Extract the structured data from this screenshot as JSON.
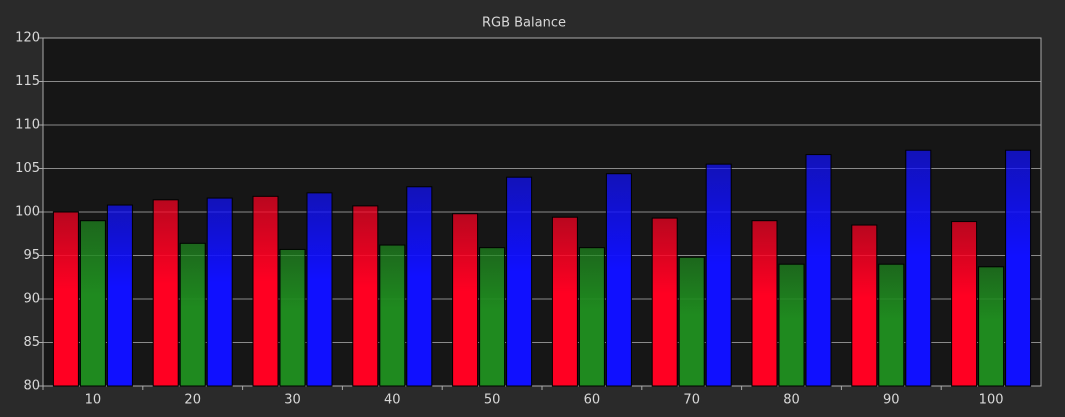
{
  "chart_data": {
    "type": "bar",
    "title": "RGB Balance",
    "categories": [
      "10",
      "20",
      "30",
      "40",
      "50",
      "60",
      "70",
      "80",
      "90",
      "100"
    ],
    "series": [
      {
        "color": "#ff0022",
        "values": [
          100.0,
          101.4,
          101.8,
          100.7,
          99.8,
          99.4,
          99.3,
          99.0,
          98.5,
          98.9
        ]
      },
      {
        "color": "#1f8a1f",
        "values": [
          99.0,
          96.4,
          95.7,
          96.2,
          95.9,
          95.9,
          94.8,
          94.0,
          94.0,
          93.7
        ]
      },
      {
        "color": "#1010ff",
        "values": [
          100.8,
          101.6,
          102.2,
          102.9,
          104.0,
          104.4,
          105.5,
          106.6,
          107.1,
          107.1
        ]
      }
    ],
    "ylim": [
      80,
      120
    ],
    "yticks": [
      80,
      85,
      90,
      95,
      100,
      105,
      110,
      115,
      120
    ],
    "grid": true
  }
}
